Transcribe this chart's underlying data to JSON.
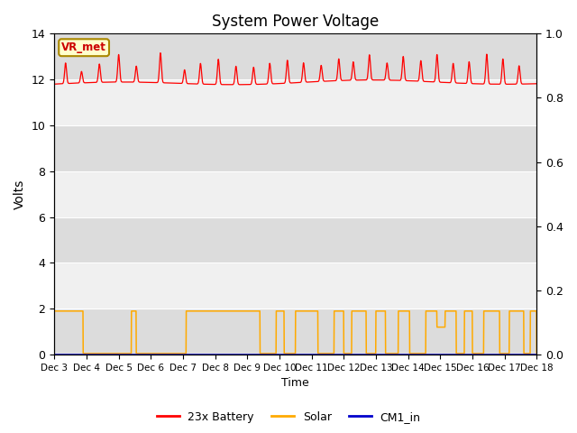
{
  "title": "System Power Voltage",
  "xlabel": "Time",
  "ylabel": "Volts",
  "ylim_left": [
    0,
    14
  ],
  "ylim_right": [
    0.0,
    1.0
  ],
  "yticks_left": [
    0,
    2,
    4,
    6,
    8,
    10,
    12,
    14
  ],
  "yticks_right": [
    0.0,
    0.2,
    0.4,
    0.6,
    0.8,
    1.0
  ],
  "bg_color": "#f0f0f0",
  "fig_color": "#ffffff",
  "band_colors": [
    "#dcdcdc",
    "#f0f0f0"
  ],
  "annotation_text": "VR_met",
  "annotation_bg": "#ffffcc",
  "annotation_border": "#aa8800",
  "annotation_text_color": "#cc0000",
  "legend_labels": [
    "23x Battery",
    "Solar",
    "CM1_in"
  ],
  "legend_colors": [
    "#ff0000",
    "#ffaa00",
    "#0000cc"
  ],
  "xtick_labels": [
    "Dec 3",
    "Dec 4",
    "Dec 5",
    "Dec 6",
    "Dec 7",
    "Dec 8",
    "Dec 9",
    "Dec 10",
    "Dec 11",
    "Dec 12",
    "Dec 13",
    "Dec 14",
    "Dec 15",
    "Dec 16",
    "Dec 17",
    "Dec 18"
  ],
  "n_points": 2000,
  "battery_base": 11.85,
  "battery_min": 11.6,
  "battery_max": 13.2,
  "solar_high": 1.9,
  "solar_low": 0.05
}
